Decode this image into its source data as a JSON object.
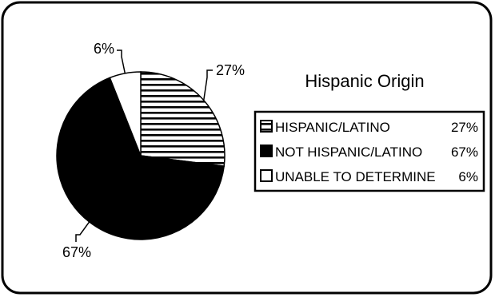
{
  "chart_data": {
    "type": "pie",
    "title": "Hispanic Origin",
    "slices": [
      {
        "label": "HISPANIC/LATINO",
        "value": 27,
        "value_label": "27%",
        "fill": "hatch-horizontal"
      },
      {
        "label": "NOT HISPANIC/LATINO",
        "value": 67,
        "value_label": "67%",
        "fill": "#000000"
      },
      {
        "label": "UNABLE TO DETERMINE",
        "value": 6,
        "value_label": "6%",
        "fill": "#ffffff"
      }
    ],
    "legend": {
      "placement": "right",
      "items": [
        {
          "label": "HISPANIC/LATINO",
          "value_label": "27%"
        },
        {
          "label": "NOT HISPANIC/LATINO",
          "value_label": "67%"
        },
        {
          "label": "UNABLE TO DETERMINE",
          "value_label": "6%"
        }
      ]
    },
    "colors": {
      "foreground": "#000000",
      "background": "#ffffff"
    }
  }
}
